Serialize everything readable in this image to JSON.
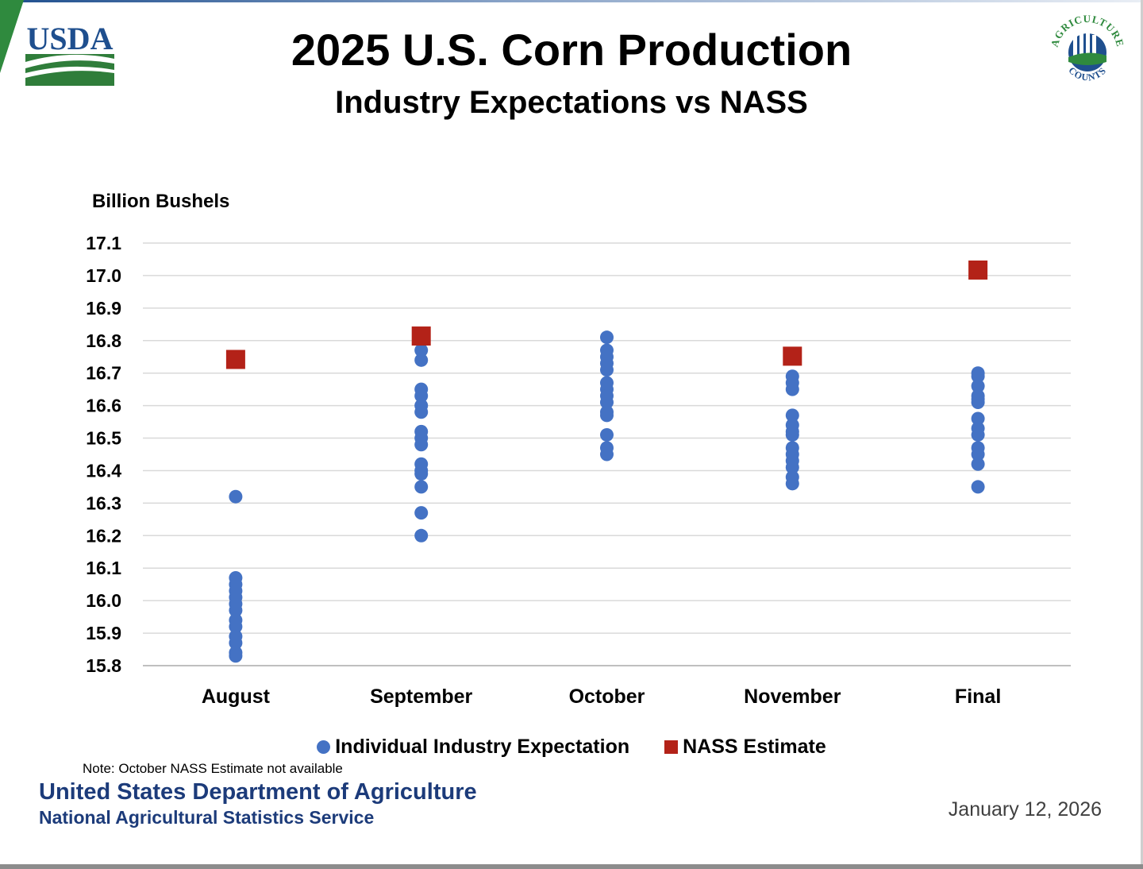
{
  "header": {
    "usda_logo_text": "USDA",
    "ag_logo_top_text": "AGRICULTURE",
    "ag_logo_bottom_text": "COUNTS",
    "icon_left": "usda-logo-icon",
    "icon_right": "agriculture-counts-logo-icon"
  },
  "chart_data": {
    "type": "scatter",
    "title": "2025 U.S. Corn Production",
    "subtitle": "Industry Expectations vs NASS",
    "ylabel": "Billion Bushels",
    "xlabel": "",
    "ylim": [
      15.8,
      17.1
    ],
    "yticks": [
      "17.1",
      "17.0",
      "16.9",
      "16.8",
      "16.7",
      "16.6",
      "16.5",
      "16.4",
      "16.3",
      "16.2",
      "16.1",
      "16.0",
      "15.9",
      "15.8"
    ],
    "ytick_values": [
      17.1,
      17.0,
      16.9,
      16.8,
      16.7,
      16.6,
      16.5,
      16.4,
      16.3,
      16.2,
      16.1,
      16.0,
      15.9,
      15.8
    ],
    "categories": [
      "August",
      "September",
      "October",
      "November",
      "Final"
    ],
    "grid": true,
    "legend_position": "bottom",
    "series": [
      {
        "name": "Individual Industry Expectation",
        "marker": "circle",
        "color": "#4472c4",
        "values": [
          [
            16.32,
            16.07,
            16.05,
            16.03,
            16.01,
            15.99,
            15.97,
            15.94,
            15.92,
            15.89,
            15.87,
            15.84,
            15.83
          ],
          [
            16.77,
            16.74,
            16.65,
            16.63,
            16.6,
            16.58,
            16.52,
            16.5,
            16.48,
            16.42,
            16.4,
            16.39,
            16.35,
            16.27,
            16.2
          ],
          [
            16.81,
            16.77,
            16.75,
            16.73,
            16.71,
            16.67,
            16.65,
            16.63,
            16.61,
            16.58,
            16.57,
            16.51,
            16.47,
            16.45
          ],
          [
            16.69,
            16.67,
            16.65,
            16.57,
            16.54,
            16.52,
            16.51,
            16.47,
            16.45,
            16.43,
            16.41,
            16.38,
            16.36
          ],
          [
            16.7,
            16.69,
            16.66,
            16.63,
            16.62,
            16.61,
            16.56,
            16.53,
            16.51,
            16.47,
            16.45,
            16.42,
            16.35
          ]
        ]
      },
      {
        "name": "NASS Estimate",
        "marker": "square",
        "color": "#b32218",
        "values": [
          16.742,
          16.814,
          null,
          16.752,
          17.017
        ]
      }
    ]
  },
  "legend": {
    "industry_label": "Individual Industry Expectation",
    "nass_label": "NASS Estimate"
  },
  "note": "Note: October NASS Estimate not available",
  "footer": {
    "department": "United States Department of Agriculture",
    "service": "National Agricultural Statistics Service",
    "date": "January 12, 2026"
  }
}
